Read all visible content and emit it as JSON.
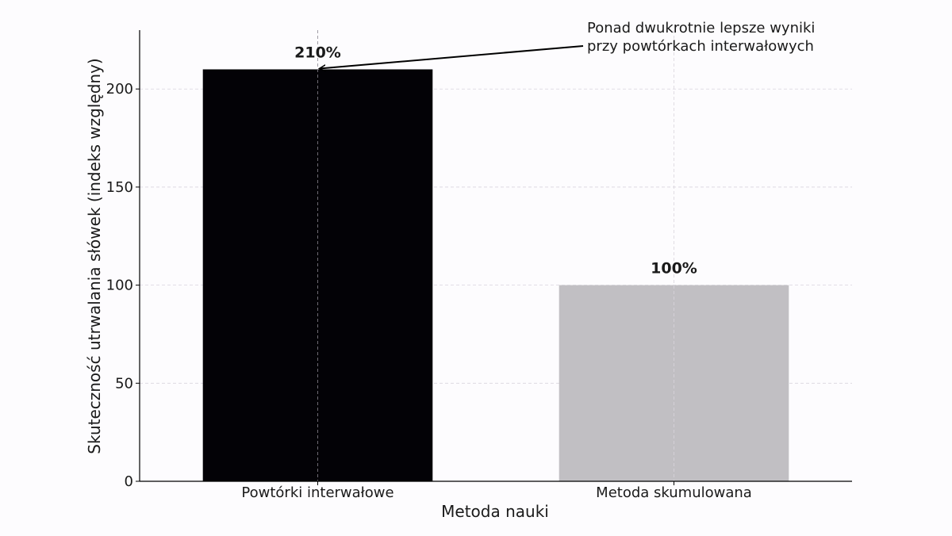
{
  "chart_data": {
    "type": "bar",
    "categories": [
      "Powtórki interwałowe",
      "Metoda skumulowana"
    ],
    "values": [
      210,
      100
    ],
    "value_labels": [
      "210%",
      "100%"
    ],
    "bar_colors": [
      "#030206",
      "#c1bfc3"
    ],
    "title": "",
    "xlabel": "Metoda nauki",
    "ylabel": "Skuteczność utrwalania słówek (indeks względny)",
    "ylim": [
      0,
      230
    ],
    "yticks": [
      0,
      50,
      100,
      150,
      200
    ],
    "grid": true,
    "annotation": {
      "lines": [
        "Ponad dwukrotnie lepsze wyniki",
        "przy powtórkach interwałowych"
      ],
      "target_category": "Powtórki interwałowe",
      "target_value": 210
    }
  }
}
